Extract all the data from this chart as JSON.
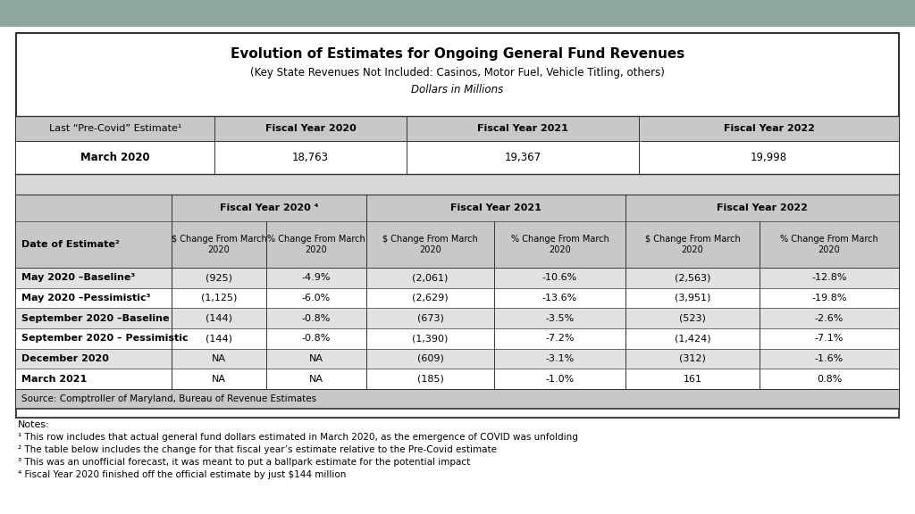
{
  "title": "Evolution of Estimates for Ongoing General Fund Revenues",
  "subtitle1": "(Key State Revenues Not Included: Casinos, Motor Fuel, Vehicle Titling, others)",
  "subtitle2": "Dollars in Millions",
  "background_outer": "#8fa89e",
  "background_white": "#ffffff",
  "background_gap": "#d8d8d8",
  "header_bg": "#c8c8c8",
  "row_alt_bg": "#e2e2e2",
  "row_white_bg": "#ffffff",
  "border_color": "#333333",
  "top_table": {
    "col_headers": [
      "Last “Pre-Covid” Estimate¹",
      "Fiscal Year 2020",
      "Fiscal Year 2021",
      "Fiscal Year 2022"
    ],
    "data_row_label": "March 2020",
    "data_row_values": [
      "18,763",
      "19,367",
      "19,998"
    ]
  },
  "bottom_table": {
    "fy2020_header": "Fiscal Year 2020 ⁴",
    "fy2021_header": "Fiscal Year 2021",
    "fy2022_header": "Fiscal Year 2022",
    "col1_header": "Date of Estimate²",
    "sub_col_headers": [
      "$ Change From March\n2020",
      "% Change From March\n2020",
      "$ Change From March\n2020",
      "% Change From March\n2020",
      "$ Change From March\n2020",
      "% Change From March\n2020"
    ],
    "rows": [
      [
        "May 2020 –Baseline³",
        "(925)",
        "-4.9%",
        "(2,061)",
        "-10.6%",
        "(2,563)",
        "-12.8%"
      ],
      [
        "May 2020 –Pessimistic³",
        "(1,125)",
        "-6.0%",
        "(2,629)",
        "-13.6%",
        "(3,951)",
        "-19.8%"
      ],
      [
        "September 2020 –Baseline",
        "(144)",
        "-0.8%",
        "(673)",
        "-3.5%",
        "(523)",
        "-2.6%"
      ],
      [
        "September 2020 – Pessimistic",
        "(144)",
        "-0.8%",
        "(1,390)",
        "-7.2%",
        "(1,424)",
        "-7.1%"
      ],
      [
        "December 2020",
        "NA",
        "NA",
        "(609)",
        "-3.1%",
        "(312)",
        "-1.6%"
      ],
      [
        "March 2021",
        "NA",
        "NA",
        "(185)",
        "-1.0%",
        "161",
        "0.8%"
      ]
    ],
    "source": "Source: Comptroller of Maryland, Bureau of Revenue Estimates"
  },
  "notes": [
    "Notes:",
    "¹ This row includes that actual general fund dollars estimated in March 2020, as the emergence of COVID was unfolding",
    "² The table below includes the change for that fiscal year’s estimate relative to the Pre-Covid estimate",
    "³ This was an unofficial forecast, it was meant to put a ballpark estimate for the potential impact",
    "⁴ Fiscal Year 2020 finished off the official estimate by just $144 million"
  ]
}
